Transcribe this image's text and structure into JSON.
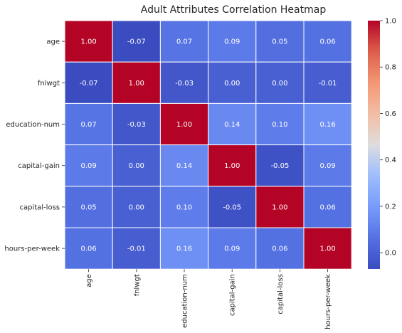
{
  "chart_data": {
    "type": "heatmap",
    "title": "Adult Attributes Correlation Heatmap",
    "rows": [
      "age",
      "fnlwgt",
      "education-num",
      "capital-gain",
      "capital-loss",
      "hours-per-week"
    ],
    "columns": [
      "age",
      "fnlwgt",
      "education-num",
      "capital-gain",
      "capital-loss",
      "hours-per-week"
    ],
    "values": [
      [
        1.0,
        -0.07,
        0.07,
        0.09,
        0.05,
        0.06
      ],
      [
        -0.07,
        1.0,
        -0.03,
        -0.0,
        0.0,
        -0.01
      ],
      [
        0.07,
        -0.03,
        1.0,
        0.14,
        0.1,
        0.16
      ],
      [
        0.09,
        -0.0,
        0.14,
        1.0,
        -0.05,
        0.09
      ],
      [
        0.05,
        0.0,
        0.1,
        -0.05,
        1.0,
        0.06
      ],
      [
        0.06,
        -0.01,
        0.16,
        0.09,
        0.06,
        1.0
      ]
    ],
    "value_format": "2 decimals",
    "colormap": "coolwarm",
    "colorbar": {
      "range": [
        -0.07,
        1.0
      ],
      "ticks": [
        "0.0",
        "0.2",
        "0.4",
        "0.6",
        "0.8",
        "1.0"
      ],
      "tick_values": [
        0.0,
        0.2,
        0.4,
        0.6,
        0.8,
        1.0
      ]
    },
    "cell_border_color": "#ffffff",
    "annotated": true
  }
}
